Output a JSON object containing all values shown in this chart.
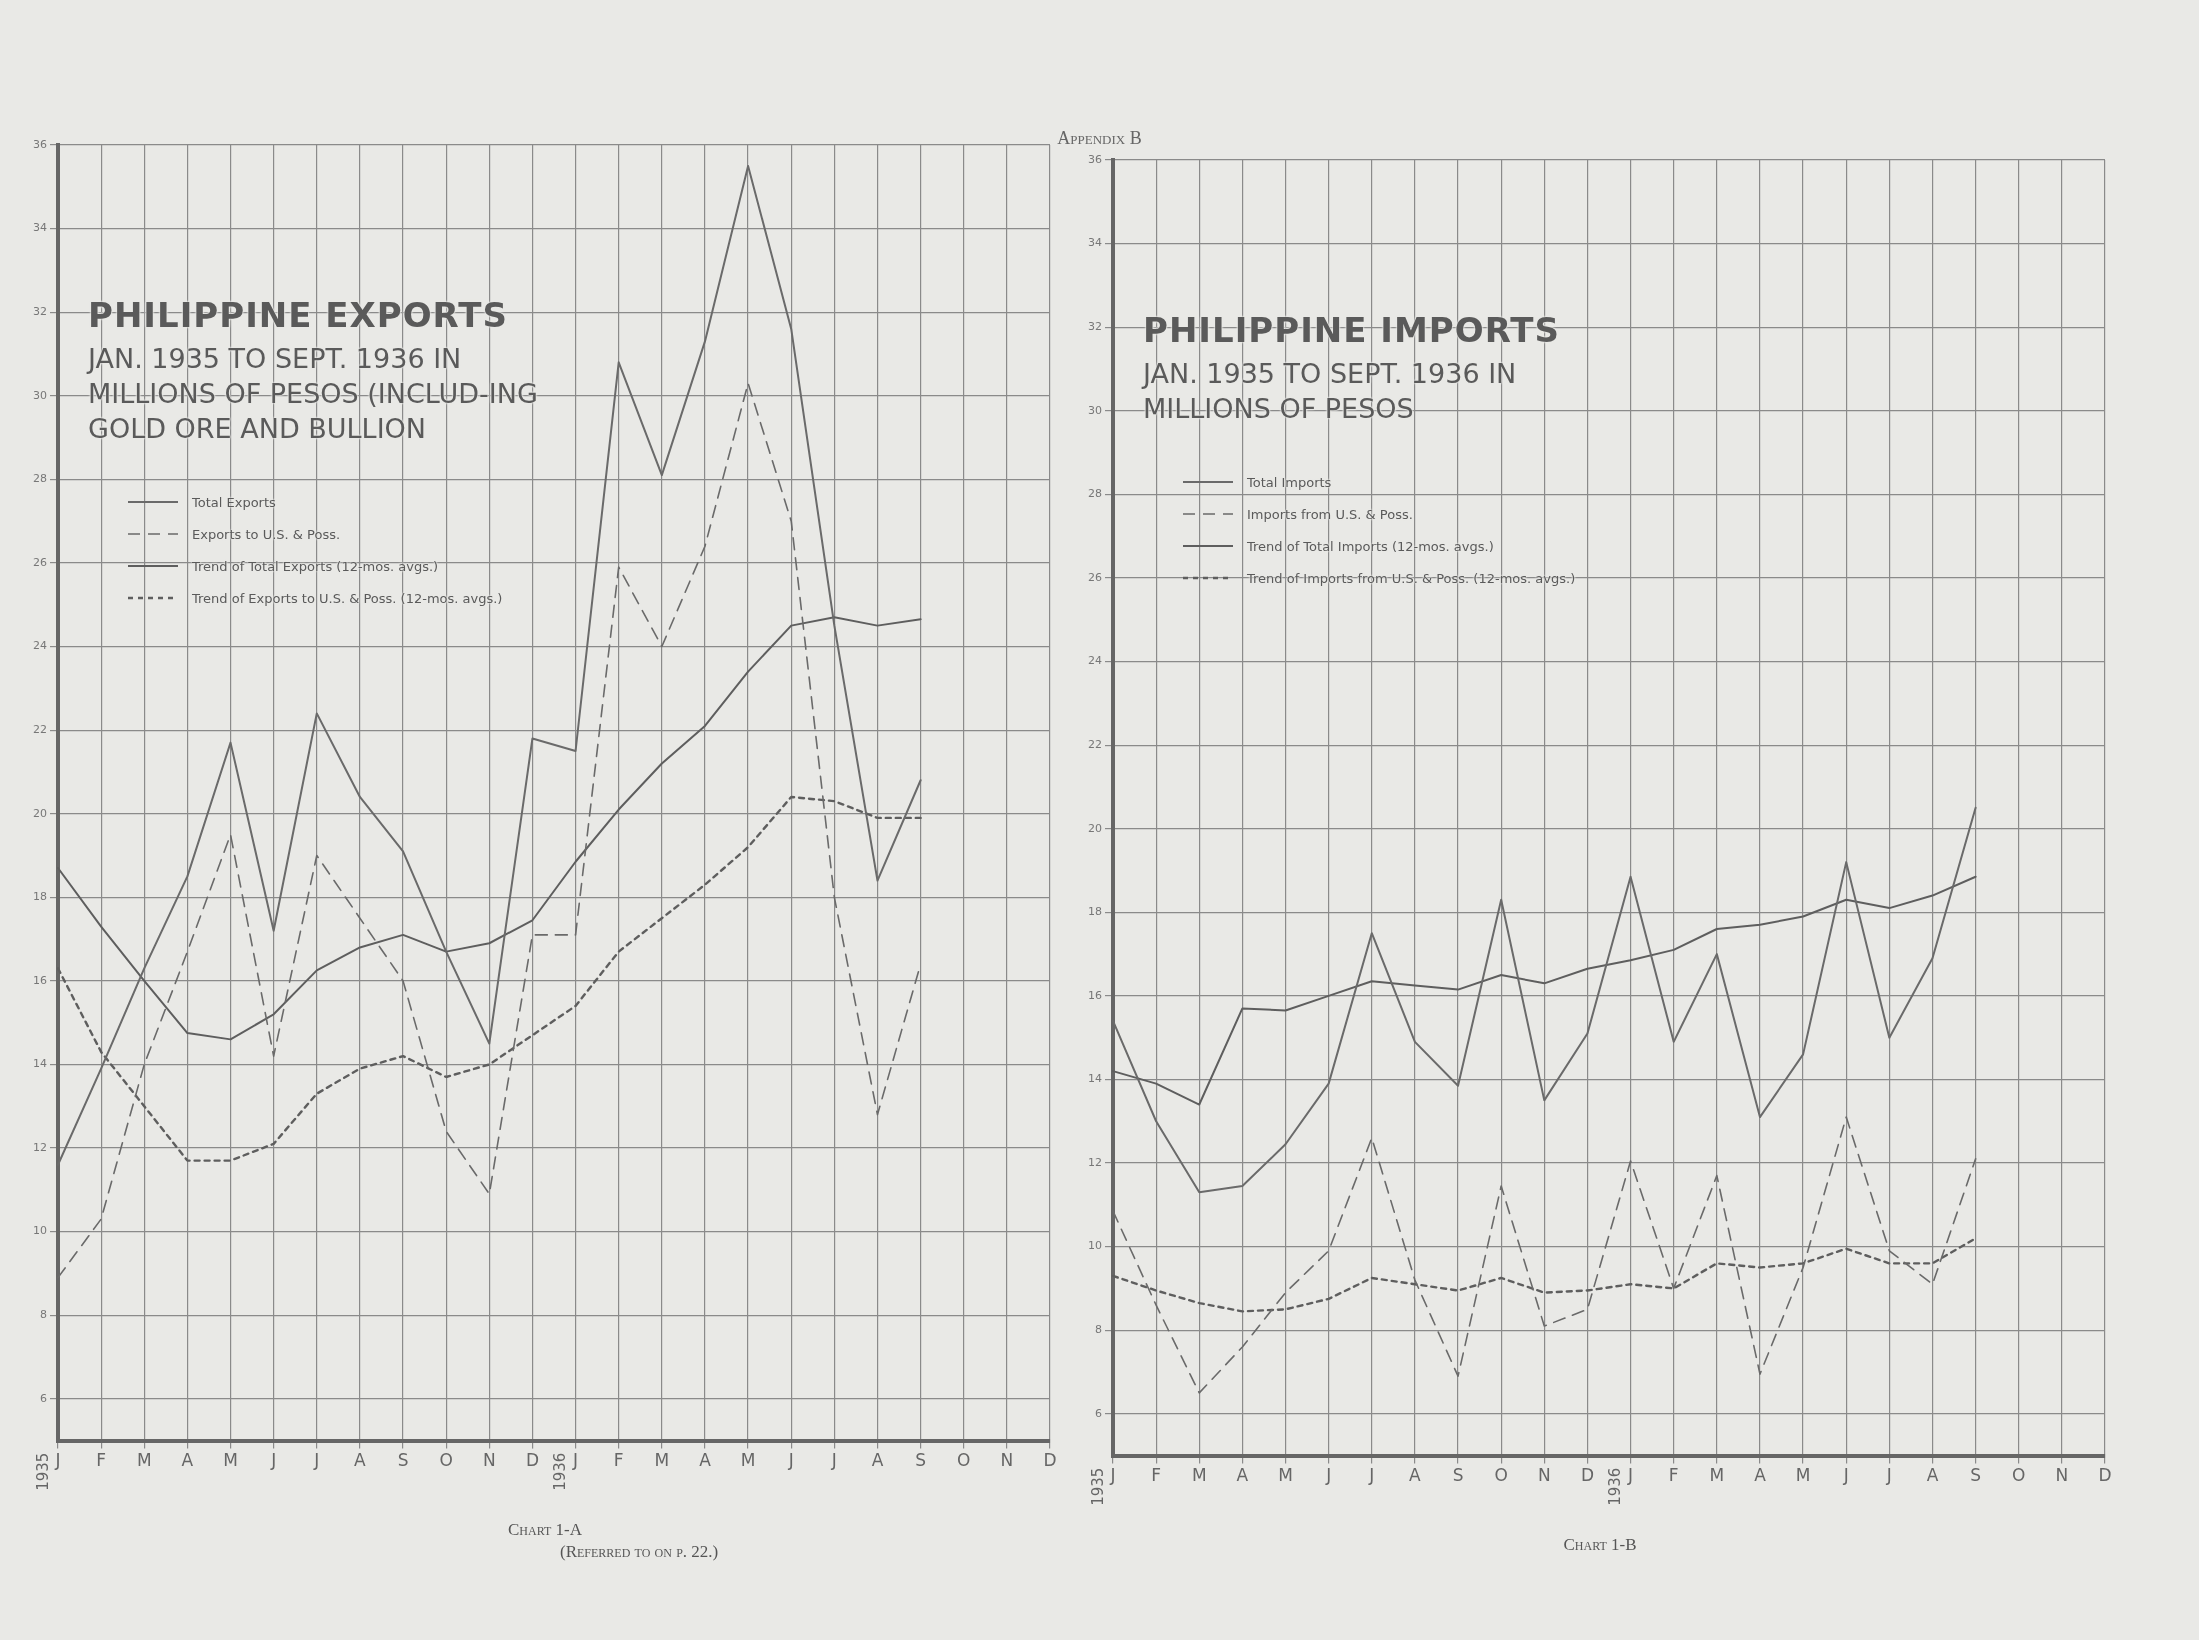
{
  "chart_data": [
    {
      "type": "line",
      "title": "PHILIPPINE EXPORTS",
      "subtitle": "JAN. 1935 TO SEPT. 1936 IN MILLIONS OF PESOS (INCLUD-ING GOLD ORE AND BULLION",
      "categories": [
        "J",
        "F",
        "M",
        "A",
        "M",
        "J",
        "J",
        "A",
        "S",
        "O",
        "N",
        "D",
        "J",
        "F",
        "M",
        "A",
        "M",
        "J",
        "J",
        "A",
        "S",
        "O",
        "N",
        "D"
      ],
      "series": [
        {
          "name": "Total Exports",
          "color": "#6a6a6a",
          "line_style": "solid",
          "values": [
            11.6,
            13.9,
            16.3,
            18.5,
            21.7,
            17.2,
            22.4,
            20.4,
            19.1,
            16.7,
            14.5,
            21.8,
            21.5,
            30.8,
            28.1,
            31.3,
            35.5,
            31.6,
            24.5,
            18.4,
            20.8,
            null,
            null,
            null
          ]
        },
        {
          "name": "Exports to U.S. & Poss.",
          "color": "#6a6a6a",
          "line_style": "dashed",
          "values": [
            8.9,
            10.3,
            14.0,
            16.7,
            19.5,
            14.2,
            19.0,
            17.5,
            16.0,
            12.4,
            10.9,
            17.1,
            17.1,
            25.9,
            24.0,
            26.4,
            30.3,
            27.0,
            18.0,
            12.8,
            16.4,
            null,
            null,
            null
          ]
        },
        {
          "name": "Trend of Total Exports (12-mos. avgs.)",
          "color": "#5e5e5e",
          "line_style": "solid",
          "values": [
            18.7,
            17.3,
            16.0,
            14.75,
            14.6,
            15.2,
            16.25,
            16.8,
            17.1,
            16.7,
            16.9,
            17.45,
            18.85,
            20.1,
            21.2,
            22.1,
            23.4,
            24.5,
            24.7,
            24.5,
            24.65,
            null,
            null,
            null
          ]
        },
        {
          "name": "Trend of Exports to U.S. & Poss. (12-mos. avgs.)",
          "color": "#5e5e5e",
          "line_style": "dotted",
          "values": [
            16.3,
            14.3,
            13.0,
            11.7,
            11.7,
            12.1,
            13.3,
            13.9,
            14.2,
            13.7,
            14.0,
            14.7,
            15.4,
            16.7,
            17.5,
            18.3,
            19.2,
            20.4,
            20.3,
            19.9,
            19.9,
            null,
            null,
            null
          ]
        }
      ],
      "ylim": [
        5,
        36
      ],
      "yticks": [
        6,
        8,
        10,
        12,
        14,
        16,
        18,
        20,
        22,
        24,
        26,
        28,
        30,
        32,
        34,
        36
      ],
      "grid": true,
      "legend": "top left",
      "marker": "none",
      "annotations": [
        "Appendix B",
        "1935",
        "1936",
        "Chart 1-A",
        "(Referred to on p. 22.)"
      ]
    },
    {
      "type": "line",
      "title": "PHILIPPINE IMPORTS",
      "subtitle": "JAN. 1935 TO SEPT. 1936 IN MILLIONS OF PESOS",
      "categories": [
        "J",
        "F",
        "M",
        "A",
        "M",
        "J",
        "J",
        "A",
        "S",
        "O",
        "N",
        "D",
        "J",
        "F",
        "M",
        "A",
        "M",
        "J",
        "J",
        "A",
        "S",
        "O",
        "N",
        "D"
      ],
      "series": [
        {
          "name": "Total Imports",
          "color": "#6a6a6a",
          "line_style": "solid",
          "values": [
            15.4,
            13.0,
            11.3,
            11.45,
            12.45,
            13.9,
            17.5,
            14.9,
            13.85,
            18.3,
            13.5,
            15.1,
            18.85,
            14.9,
            17.0,
            13.1,
            14.6,
            19.2,
            15.0,
            16.9,
            20.5,
            null,
            null,
            null
          ]
        },
        {
          "name": "Imports from U.S. & Poss.",
          "color": "#6a6a6a",
          "line_style": "dashed",
          "values": [
            10.85,
            8.6,
            6.5,
            7.6,
            8.9,
            9.9,
            12.6,
            9.2,
            6.9,
            11.45,
            8.1,
            8.5,
            12.05,
            9.0,
            11.7,
            6.95,
            9.5,
            13.1,
            9.9,
            9.1,
            12.1,
            null,
            null,
            null
          ]
        },
        {
          "name": "Trend of Total Imports (12-mos. avgs.)",
          "color": "#5e5e5e",
          "line_style": "solid",
          "values": [
            14.2,
            13.9,
            13.4,
            15.7,
            15.65,
            16.0,
            16.35,
            16.25,
            16.15,
            16.5,
            16.3,
            16.65,
            16.85,
            17.1,
            17.6,
            17.7,
            17.9,
            18.3,
            18.1,
            18.4,
            18.85,
            null,
            null,
            null
          ]
        },
        {
          "name": "Trend of Imports from U.S. & Poss. (12-mos. avgs.)",
          "color": "#5e5e5e",
          "line_style": "dotted",
          "values": [
            9.3,
            8.95,
            8.65,
            8.45,
            8.5,
            8.75,
            9.25,
            9.1,
            8.95,
            9.25,
            8.9,
            8.95,
            9.1,
            9.0,
            9.6,
            9.5,
            9.6,
            9.95,
            9.6,
            9.6,
            10.2,
            null,
            null,
            null
          ]
        }
      ],
      "ylim": [
        5,
        36
      ],
      "yticks": [
        6,
        8,
        10,
        12,
        14,
        16,
        18,
        20,
        22,
        24,
        26,
        28,
        30,
        32,
        34,
        36
      ],
      "grid": true,
      "legend": "top left",
      "marker": "none",
      "annotations": [
        "1935",
        "1936",
        "Chart 1-B"
      ]
    }
  ]
}
